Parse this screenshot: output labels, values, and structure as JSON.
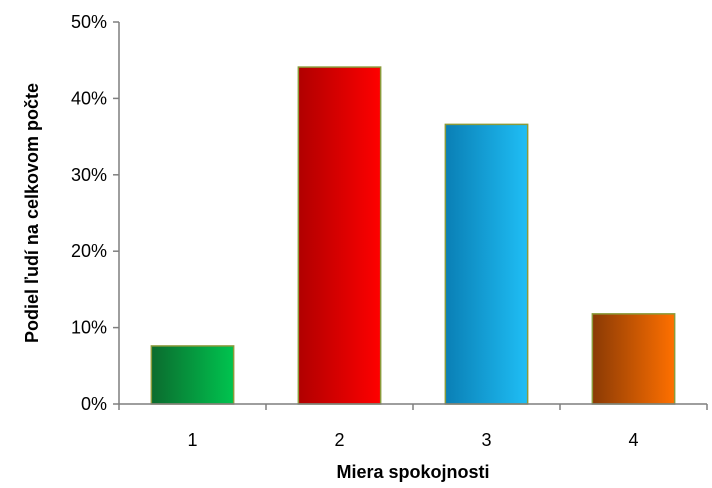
{
  "chart_data": {
    "type": "bar",
    "categories": [
      "1",
      "2",
      "3",
      "4"
    ],
    "values": [
      7.6,
      44.1,
      36.6,
      11.8
    ],
    "xlabel": "Miera spokojnosti",
    "ylabel": "Podiel ľudí na celkovom počte",
    "ylim": [
      0,
      50
    ],
    "yticks": [
      "0%",
      "10%",
      "20%",
      "30%",
      "40%",
      "50%"
    ],
    "grid": false,
    "legend": "none",
    "bar_colors": [
      {
        "dark": "#0b6b2e",
        "light": "#00c44f"
      },
      {
        "dark": "#b00000",
        "light": "#ff0000"
      },
      {
        "dark": "#0a7fb5",
        "light": "#1fbef5"
      },
      {
        "dark": "#8a3a05",
        "light": "#ff7000"
      }
    ],
    "bar_border_color": "#8a9a3a",
    "axis_color": "#7f7f7f"
  }
}
